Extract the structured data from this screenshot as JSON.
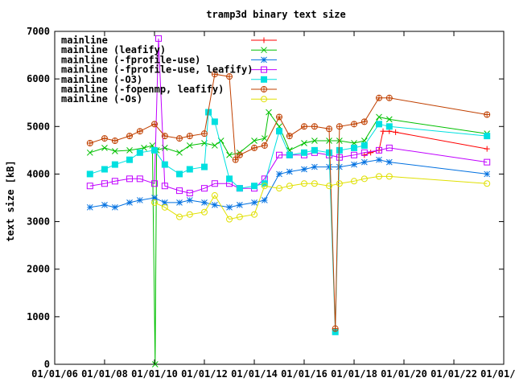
{
  "chart_data": {
    "type": "line",
    "title": "tramp3d binary text size",
    "ylabel": "text size [kB]",
    "xlabel": "",
    "ylim": [
      0,
      7000
    ],
    "yticks": [
      "0",
      "1000",
      "2000",
      "3000",
      "4000",
      "5000",
      "6000",
      "7000"
    ],
    "ytick_values": [
      0,
      1000,
      2000,
      3000,
      4000,
      5000,
      6000,
      7000
    ],
    "xlim": [
      "2006-01-01",
      "2024-01-01"
    ],
    "xticks": [
      "01/01/06",
      "01/01/08",
      "01/01/10",
      "01/01/12",
      "01/01/14",
      "01/01/16",
      "01/01/18",
      "01/01/20",
      "01/01/22",
      "01/01/24"
    ],
    "xtick_values": [
      "2006-01-01",
      "2008-01-01",
      "2010-01-01",
      "2012-01-01",
      "2014-01-01",
      "2016-01-01",
      "2018-01-01",
      "2020-01-01",
      "2022-01-01",
      "2024-01-01"
    ],
    "grid": false,
    "legend_position": "top-left",
    "series": [
      {
        "name": "mainline",
        "color": "#ff0000",
        "marker": "plus",
        "points": [
          [
            "2018-06-01",
            4400
          ],
          [
            "2018-09-01",
            4450
          ],
          [
            "2019-01-01",
            4500
          ],
          [
            "2019-03-01",
            4900
          ],
          [
            "2019-06-01",
            4900
          ],
          [
            "2019-09-01",
            4880
          ],
          [
            "2023-05-01",
            4530
          ]
        ]
      },
      {
        "name": "mainline (leafify)",
        "color": "#00c000",
        "marker": "cross",
        "points": [
          [
            "2007-06-01",
            4450
          ],
          [
            "2008-01-01",
            4550
          ],
          [
            "2008-06-01",
            4480
          ],
          [
            "2009-01-01",
            4500
          ],
          [
            "2009-08-01",
            4550
          ],
          [
            "2009-12-01",
            4600
          ],
          [
            "2010-01-10",
            0
          ],
          [
            "2010-02-01",
            4500
          ],
          [
            "2010-06-01",
            4550
          ],
          [
            "2011-01-01",
            4450
          ],
          [
            "2011-06-01",
            4600
          ],
          [
            "2012-01-01",
            4650
          ],
          [
            "2012-06-01",
            4600
          ],
          [
            "2012-09-01",
            4700
          ],
          [
            "2013-01-01",
            4400
          ],
          [
            "2013-06-01",
            4450
          ],
          [
            "2014-01-01",
            4700
          ],
          [
            "2014-06-01",
            4750
          ],
          [
            "2014-08-01",
            5300
          ],
          [
            "2015-01-01",
            5000
          ],
          [
            "2015-06-01",
            4500
          ],
          [
            "2016-01-01",
            4650
          ],
          [
            "2016-06-01",
            4700
          ],
          [
            "2017-01-01",
            4700
          ],
          [
            "2017-06-01",
            4700
          ],
          [
            "2018-01-01",
            4650
          ],
          [
            "2018-06-01",
            4700
          ],
          [
            "2019-01-01",
            5200
          ],
          [
            "2019-06-01",
            5150
          ],
          [
            "2023-05-01",
            4850
          ]
        ]
      },
      {
        "name": "mainline (-fprofile-use)",
        "color": "#0070e0",
        "marker": "star",
        "points": [
          [
            "2007-06-01",
            3300
          ],
          [
            "2008-01-01",
            3350
          ],
          [
            "2008-06-01",
            3300
          ],
          [
            "2009-01-01",
            3400
          ],
          [
            "2009-06-01",
            3450
          ],
          [
            "2010-01-01",
            3500
          ],
          [
            "2010-06-01",
            3400
          ],
          [
            "2011-01-01",
            3400
          ],
          [
            "2011-06-01",
            3450
          ],
          [
            "2012-01-01",
            3400
          ],
          [
            "2012-06-01",
            3350
          ],
          [
            "2013-01-01",
            3300
          ],
          [
            "2013-06-01",
            3350
          ],
          [
            "2014-01-01",
            3400
          ],
          [
            "2014-06-01",
            3450
          ],
          [
            "2015-01-01",
            4000
          ],
          [
            "2015-06-01",
            4050
          ],
          [
            "2016-01-01",
            4100
          ],
          [
            "2016-06-01",
            4150
          ],
          [
            "2017-01-01",
            4150
          ],
          [
            "2017-06-01",
            4150
          ],
          [
            "2018-01-01",
            4200
          ],
          [
            "2018-06-01",
            4250
          ],
          [
            "2019-01-01",
            4300
          ],
          [
            "2019-06-01",
            4250
          ],
          [
            "2023-05-01",
            4000
          ]
        ]
      },
      {
        "name": "mainline (-fprofile-use, leafify)",
        "color": "#c000ff",
        "marker": "square",
        "points": [
          [
            "2007-06-01",
            3750
          ],
          [
            "2008-01-01",
            3800
          ],
          [
            "2008-06-01",
            3850
          ],
          [
            "2009-01-01",
            3900
          ],
          [
            "2009-06-01",
            3900
          ],
          [
            "2010-01-01",
            3800
          ],
          [
            "2010-03-01",
            6850
          ],
          [
            "2010-06-01",
            3750
          ],
          [
            "2011-01-01",
            3650
          ],
          [
            "2011-06-01",
            3600
          ],
          [
            "2012-01-01",
            3700
          ],
          [
            "2012-06-01",
            3800
          ],
          [
            "2013-01-01",
            3800
          ],
          [
            "2013-06-01",
            3700
          ],
          [
            "2014-01-01",
            3700
          ],
          [
            "2014-06-01",
            3900
          ],
          [
            "2015-01-01",
            4400
          ],
          [
            "2015-06-01",
            4400
          ],
          [
            "2016-01-01",
            4400
          ],
          [
            "2016-06-01",
            4450
          ],
          [
            "2017-01-01",
            4400
          ],
          [
            "2017-06-01",
            4350
          ],
          [
            "2018-01-01",
            4400
          ],
          [
            "2018-06-01",
            4450
          ],
          [
            "2019-01-01",
            4500
          ],
          [
            "2019-06-01",
            4550
          ],
          [
            "2023-05-01",
            4250
          ]
        ]
      },
      {
        "name": "mainline (-O3)",
        "color": "#00e0e0",
        "marker": "filled-square",
        "points": [
          [
            "2007-06-01",
            4000
          ],
          [
            "2008-01-01",
            4100
          ],
          [
            "2008-06-01",
            4200
          ],
          [
            "2009-01-01",
            4300
          ],
          [
            "2009-06-01",
            4450
          ],
          [
            "2010-01-01",
            4500
          ],
          [
            "2010-06-01",
            4200
          ],
          [
            "2011-01-01",
            4000
          ],
          [
            "2011-06-01",
            4100
          ],
          [
            "2012-01-01",
            4150
          ],
          [
            "2012-03-01",
            5300
          ],
          [
            "2012-06-01",
            5100
          ],
          [
            "2013-01-01",
            3900
          ],
          [
            "2013-06-01",
            3700
          ],
          [
            "2014-01-01",
            3750
          ],
          [
            "2014-06-01",
            3800
          ],
          [
            "2015-01-01",
            4900
          ],
          [
            "2015-06-01",
            4400
          ],
          [
            "2016-01-01",
            4450
          ],
          [
            "2016-06-01",
            4500
          ],
          [
            "2017-01-01",
            4450
          ],
          [
            "2017-04-01",
            680
          ],
          [
            "2017-06-01",
            4500
          ],
          [
            "2018-01-01",
            4550
          ],
          [
            "2018-06-01",
            4600
          ],
          [
            "2019-01-01",
            5050
          ],
          [
            "2019-06-01",
            5000
          ],
          [
            "2023-05-01",
            4800
          ]
        ]
      },
      {
        "name": "mainline (-fopenmp, leafify)",
        "color": "#c04000",
        "marker": "circle-plus",
        "points": [
          [
            "2007-06-01",
            4650
          ],
          [
            "2008-01-01",
            4750
          ],
          [
            "2008-06-01",
            4700
          ],
          [
            "2009-01-01",
            4800
          ],
          [
            "2009-06-01",
            4900
          ],
          [
            "2010-01-01",
            5050
          ],
          [
            "2010-06-01",
            4800
          ],
          [
            "2011-01-01",
            4750
          ],
          [
            "2011-06-01",
            4800
          ],
          [
            "2012-01-01",
            4850
          ],
          [
            "2012-06-01",
            6100
          ],
          [
            "2013-01-01",
            6050
          ],
          [
            "2013-04-01",
            4300
          ],
          [
            "2013-06-01",
            4400
          ],
          [
            "2014-01-01",
            4550
          ],
          [
            "2014-06-01",
            4600
          ],
          [
            "2015-01-01",
            5200
          ],
          [
            "2015-06-01",
            4800
          ],
          [
            "2016-01-01",
            5000
          ],
          [
            "2016-06-01",
            5000
          ],
          [
            "2017-01-01",
            4950
          ],
          [
            "2017-04-01",
            750
          ],
          [
            "2017-06-01",
            5000
          ],
          [
            "2018-01-01",
            5050
          ],
          [
            "2018-06-01",
            5100
          ],
          [
            "2019-01-01",
            5600
          ],
          [
            "2019-06-01",
            5600
          ],
          [
            "2023-05-01",
            5250
          ]
        ]
      },
      {
        "name": "mainline (-Os)",
        "color": "#e0e000",
        "marker": "circle",
        "points": [
          [
            "2010-01-01",
            3400
          ],
          [
            "2010-06-01",
            3300
          ],
          [
            "2011-01-01",
            3100
          ],
          [
            "2011-06-01",
            3150
          ],
          [
            "2012-01-01",
            3200
          ],
          [
            "2012-06-01",
            3550
          ],
          [
            "2013-01-01",
            3050
          ],
          [
            "2013-06-01",
            3100
          ],
          [
            "2014-01-01",
            3150
          ],
          [
            "2014-06-01",
            3750
          ],
          [
            "2015-01-01",
            3700
          ],
          [
            "2015-06-01",
            3750
          ],
          [
            "2016-01-01",
            3800
          ],
          [
            "2016-06-01",
            3800
          ],
          [
            "2017-01-01",
            3750
          ],
          [
            "2017-06-01",
            3800
          ],
          [
            "2018-01-01",
            3850
          ],
          [
            "2018-06-01",
            3900
          ],
          [
            "2019-01-01",
            3950
          ],
          [
            "2019-06-01",
            3950
          ],
          [
            "2023-05-01",
            3800
          ]
        ]
      }
    ]
  }
}
